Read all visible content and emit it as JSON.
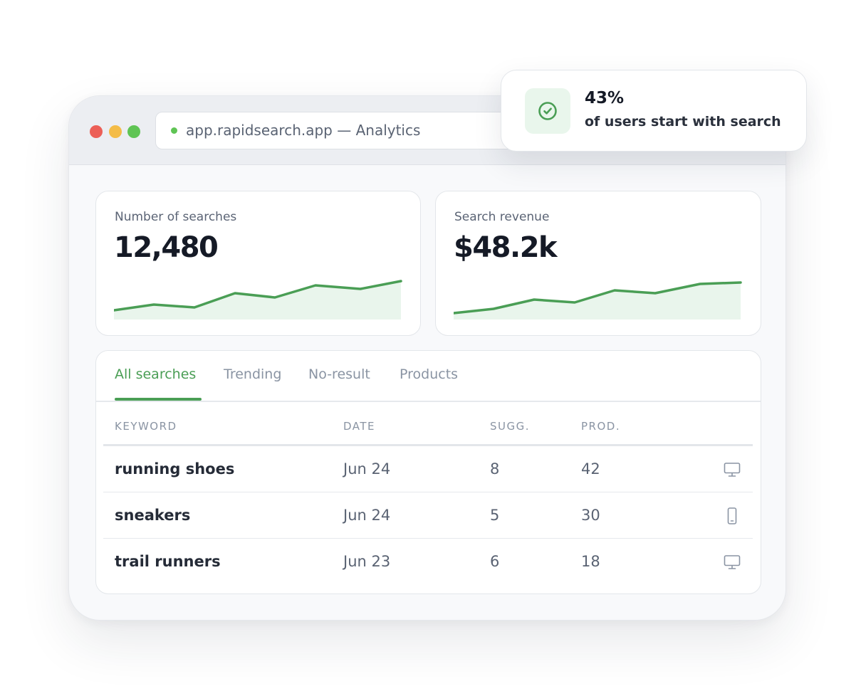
{
  "browser": {
    "url_text": "app.rapidsearch.app — Analytics",
    "status_color": "#5fc454"
  },
  "metrics": [
    {
      "label": "Number of searches",
      "value": "12,480"
    },
    {
      "label": "Search revenue",
      "value": "$48.2k"
    }
  ],
  "tabs": [
    {
      "label": "All searches",
      "active": true
    },
    {
      "label": "Trending",
      "active": false
    },
    {
      "label": "No-result",
      "active": false
    },
    {
      "label": "Products",
      "active": false
    }
  ],
  "table": {
    "headers": [
      "KEYWORD",
      "DATE",
      "SUGG.",
      "PROD."
    ],
    "rows": [
      {
        "keyword": "running shoes",
        "date": "Jun 24",
        "sugg": "8",
        "prod": "42",
        "device": "desktop-icon"
      },
      {
        "keyword": "sneakers",
        "date": "Jun 24",
        "sugg": "5",
        "prod": "30",
        "device": "mobile-icon"
      },
      {
        "keyword": "trail runners",
        "date": "Jun 23",
        "sugg": "6",
        "prod": "18",
        "device": "desktop-icon"
      }
    ]
  },
  "toast": {
    "value": "43%",
    "text": "of users start with search",
    "icon": "check-circle-icon"
  },
  "colors": {
    "accent": "#4a9e55",
    "accent_fill": "#e9f5ec",
    "window_controls": [
      "#ec5f57",
      "#f4bc48",
      "#5fc454"
    ]
  }
}
